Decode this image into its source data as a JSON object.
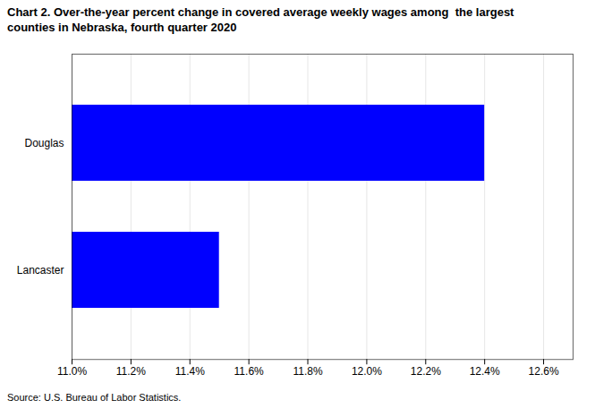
{
  "chart_data": {
    "type": "bar",
    "orientation": "horizontal",
    "title": "Chart 2. Over-the-year percent change in covered average weekly wages among  the largest\ncounties in Nebraska, fourth quarter 2020",
    "categories": [
      "Lancaster",
      "Douglas"
    ],
    "values": [
      11.5,
      12.4
    ],
    "color": "#0000FF",
    "xlim": [
      11.0,
      12.7
    ],
    "xticks": [
      {
        "value": 11.0,
        "label": "11.0%"
      },
      {
        "value": 11.2,
        "label": "11.2%"
      },
      {
        "value": 11.4,
        "label": "11.4%"
      },
      {
        "value": 11.6,
        "label": "11.6%"
      },
      {
        "value": 11.8,
        "label": "11.8%"
      },
      {
        "value": 12.0,
        "label": "12.0%"
      },
      {
        "value": 12.2,
        "label": "12.2%"
      },
      {
        "value": 12.4,
        "label": "12.4%"
      },
      {
        "value": 12.6,
        "label": "12.6%"
      }
    ],
    "grid": true,
    "source": "Source: U.S. Bureau of Labor Statistics."
  }
}
